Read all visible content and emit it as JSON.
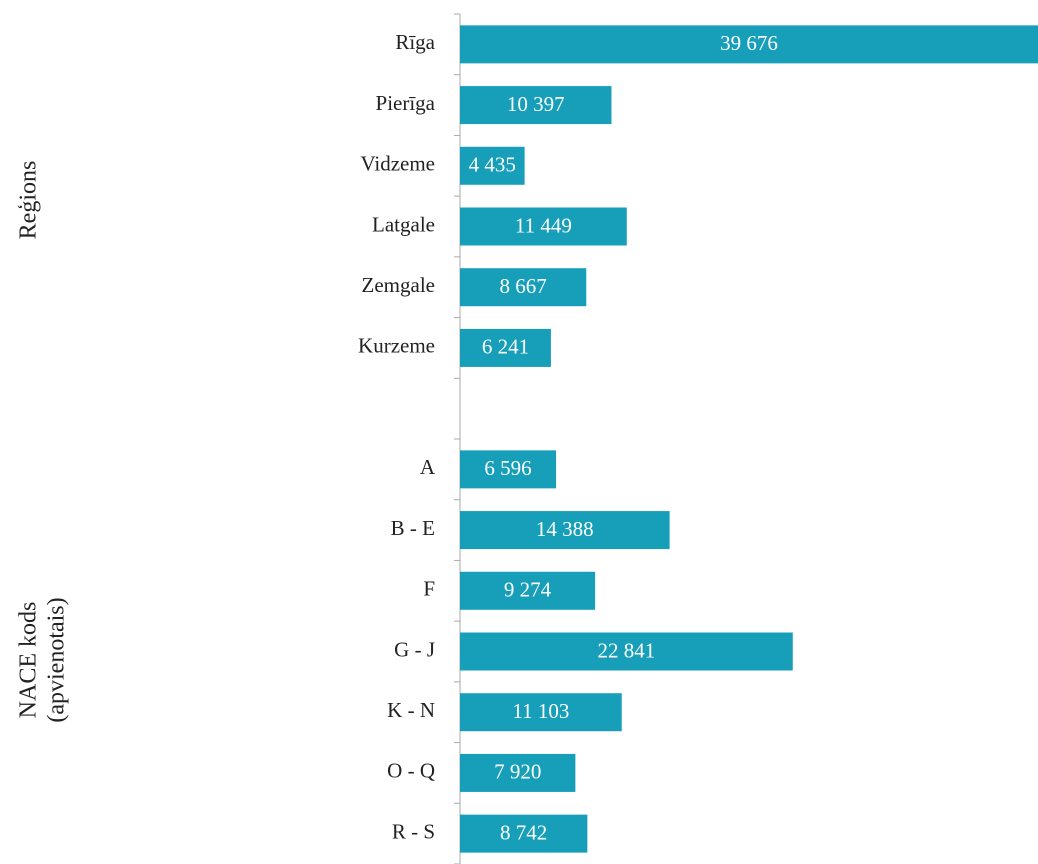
{
  "chart_data": {
    "type": "bar",
    "orientation": "horizontal",
    "categories": [
      "Rīga",
      "Pierīga",
      "Vidzeme",
      "Latgale",
      "Zemgale",
      "Kurzeme",
      null,
      "A",
      "B - E",
      "F",
      "G - J",
      "K - N",
      "O - Q",
      "R - S"
    ],
    "values": [
      39676,
      10397,
      4435,
      11449,
      8667,
      6241,
      null,
      6596,
      14388,
      9274,
      22841,
      11103,
      7920,
      8742
    ],
    "value_labels": [
      "39 676",
      "10 397",
      "4 435",
      "11 449",
      "8 667",
      "6 241",
      null,
      "6 596",
      "14 388",
      "9 274",
      "22 841",
      "11 103",
      "7 920",
      "8 742"
    ],
    "color": "#179fba",
    "group_labels": [
      [
        "Reģions"
      ],
      [
        "NACE kods",
        "(apvienotais)"
      ]
    ]
  }
}
